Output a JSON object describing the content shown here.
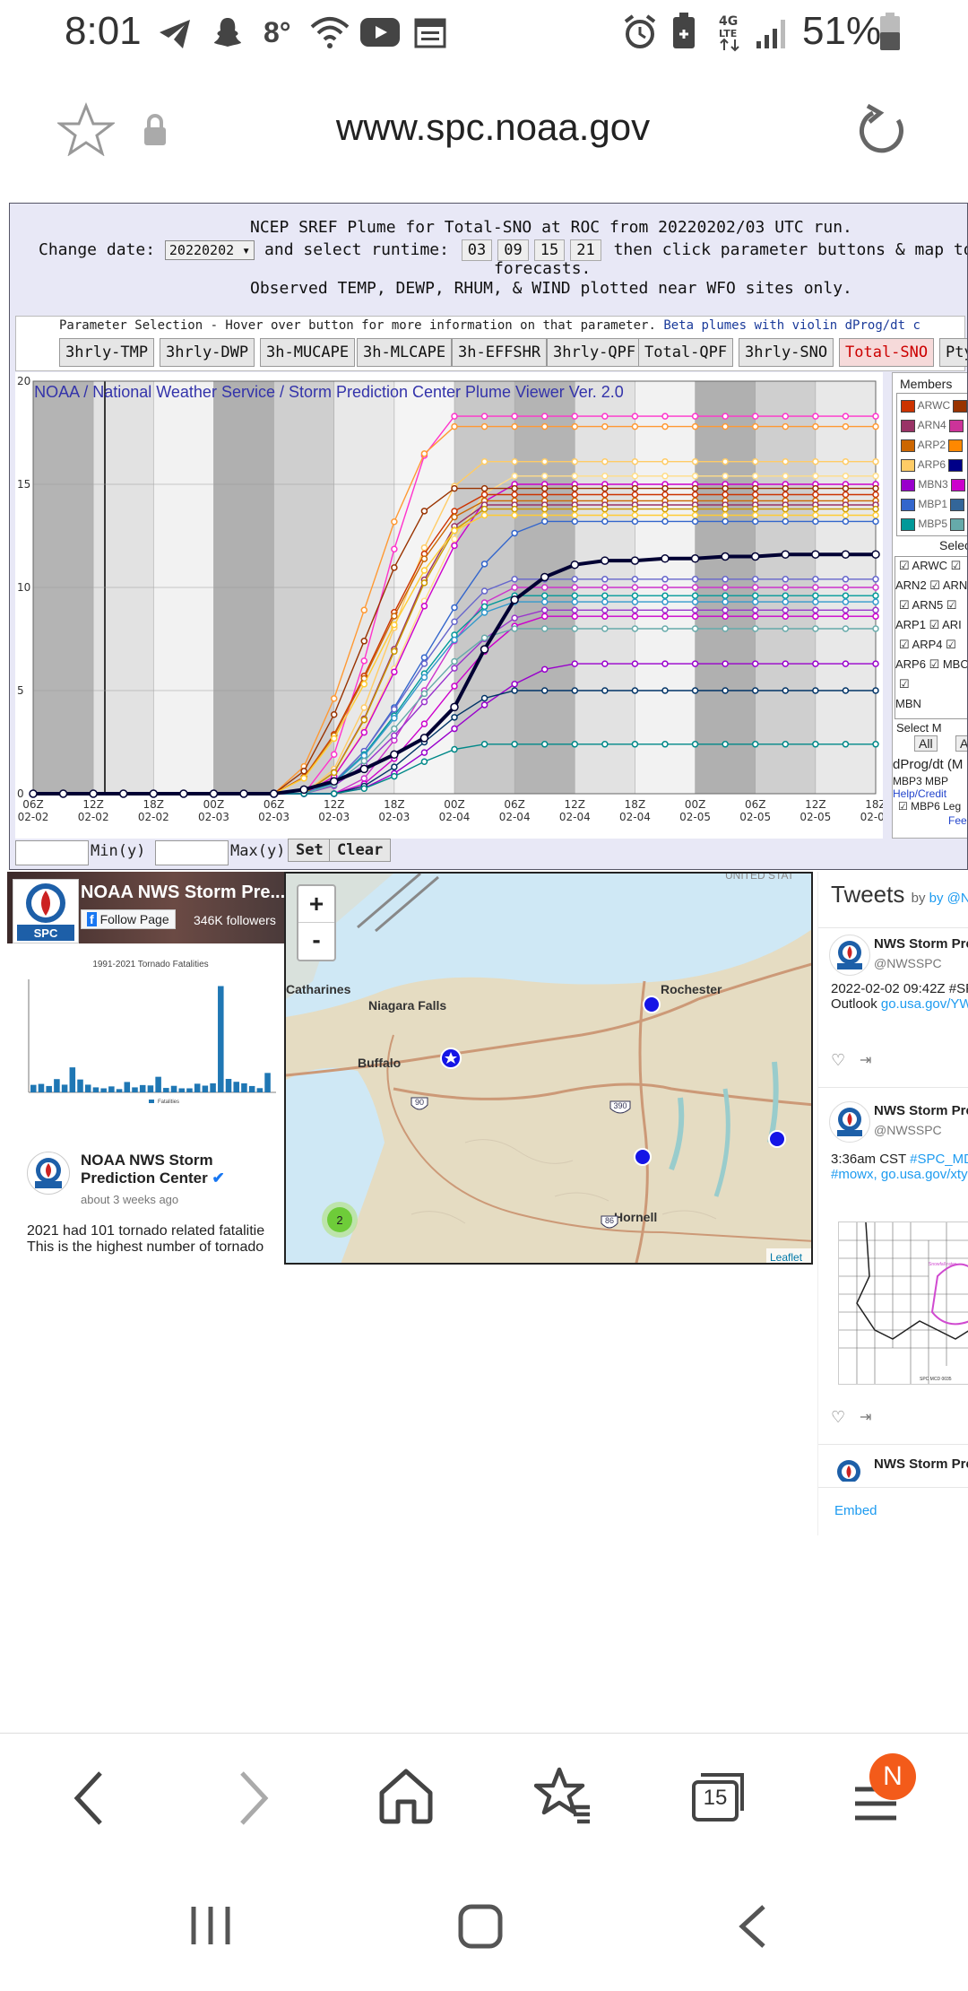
{
  "status": {
    "time": "8:01",
    "temp": "8°",
    "battery": "51%"
  },
  "browser": {
    "url": "www.spc.noaa.gov",
    "tab_count": "15",
    "profile_initial": "N"
  },
  "plume": {
    "title_line": "NCEP SREF Plume for Total-SNO at ROC from 20220202/03 UTC run.",
    "change_date_label": "Change date:",
    "date_value": "20220202",
    "select_runtime_label": "and select runtime:",
    "runtimes": [
      "03",
      "09",
      "15",
      "21"
    ],
    "then_label": "then click parameter buttons & map to",
    "forecasts_label": "forecasts.",
    "observed_note": "Observed TEMP, DEWP, RHUM, & WIND plotted near WFO sites only.",
    "param_selection_text": "Parameter Selection - Hover over button for more information on that parameter.",
    "beta_text": "Beta plumes with violin dProg/dt c",
    "params": [
      "3hrly-TMP",
      "3hrly-DWP",
      "3h-MUCAPE",
      "3h-MLCAPE",
      "3h-EFFSHR",
      "3hrly-QPF",
      "Total-QPF",
      "3hrly-SNO",
      "Total-SNO",
      "Ptyp"
    ],
    "active_param": "Total-SNO",
    "min_label": "Min(y)",
    "max_label": "Max(y)",
    "set_label": "Set",
    "clear_label": "Clear"
  },
  "members_panel": {
    "header": "Members",
    "names": [
      "ARWC",
      "ARN4",
      "ARP2",
      "ARP6",
      "MBN3",
      "MBP1",
      "MBP5"
    ],
    "colors": [
      "#cc3300",
      "#993366",
      "#cc6600",
      "#ffcc66",
      "#9900cc",
      "#3366cc",
      "#009999"
    ],
    "colors2": [
      "#993300",
      "#cc3399",
      "#ff8800",
      "#000088",
      "#cc00cc",
      "#336699",
      "#66aaaa"
    ],
    "select_label": "Select",
    "checks": [
      "ARWC",
      "ARN2",
      "ARN5",
      "ARP1",
      "ARP4",
      "ARP6",
      "MBN"
    ],
    "checks_partial": [
      "ARN",
      "ARI",
      "MBC"
    ],
    "select_all": "Select M",
    "all_btn": "All",
    "all_btn2": "A",
    "dprog": "dProg/dt (M",
    "mbp3": "MBP3",
    "mbp": "MBP",
    "help": "Help/Credit",
    "mbp6": "MBP6",
    "leg": "Leg",
    "fee": "Fee"
  },
  "chart_data": {
    "type": "line",
    "title": "NOAA / National Weather Service / Storm Prediction Center Plume Viewer Ver. 2.0",
    "ylim": [
      0,
      20
    ],
    "yticks": [
      "0",
      "5",
      "10",
      "15",
      "20"
    ],
    "x_labels": [
      [
        "06Z",
        "02-02"
      ],
      [
        "12Z",
        "02-02"
      ],
      [
        "18Z",
        "02-02"
      ],
      [
        "00Z",
        "02-03"
      ],
      [
        "06Z",
        "02-03"
      ],
      [
        "12Z",
        "02-03"
      ],
      [
        "18Z",
        "02-03"
      ],
      [
        "00Z",
        "02-04"
      ],
      [
        "06Z",
        "02-04"
      ],
      [
        "12Z",
        "02-04"
      ],
      [
        "18Z",
        "02-04"
      ],
      [
        "00Z",
        "02-05"
      ],
      [
        "06Z",
        "02-05"
      ],
      [
        "12Z",
        "02-05"
      ],
      [
        "18Z",
        "02-05"
      ]
    ],
    "steps": 29,
    "mean_series": {
      "name": "Mean",
      "color": "#000033",
      "values": [
        0,
        0,
        0,
        0,
        0,
        0,
        0,
        0,
        0,
        0.2,
        0.6,
        1.2,
        1.9,
        2.7,
        4.2,
        7.0,
        9.4,
        10.5,
        11.1,
        11.3,
        11.3,
        11.4,
        11.4,
        11.5,
        11.5,
        11.6,
        11.6,
        11.6,
        11.6
      ]
    },
    "series": [
      {
        "color": "#ff33cc",
        "final": 18.3,
        "start": 9,
        "rise": 5
      },
      {
        "color": "#ff9933",
        "final": 17.8,
        "start": 8,
        "rise": 6
      },
      {
        "color": "#ffcc66",
        "final": 16.1,
        "start": 9,
        "rise": 6
      },
      {
        "color": "#ffdd88",
        "final": 15.4,
        "start": 9,
        "rise": 7
      },
      {
        "color": "#cc00cc",
        "final": 15.0,
        "start": 9,
        "rise": 7
      },
      {
        "color": "#993300",
        "final": 14.8,
        "start": 8,
        "rise": 6
      },
      {
        "color": "#cc3300",
        "final": 14.5,
        "start": 8,
        "rise": 7
      },
      {
        "color": "#cc6600",
        "final": 14.2,
        "start": 8,
        "rise": 7
      },
      {
        "color": "#993366",
        "final": 14.0,
        "start": 9,
        "rise": 6
      },
      {
        "color": "#cc9900",
        "final": 13.8,
        "start": 9,
        "rise": 6
      },
      {
        "color": "#ffcc33",
        "final": 13.5,
        "start": 8,
        "rise": 7
      },
      {
        "color": "#3366cc",
        "final": 13.2,
        "start": 9,
        "rise": 8
      },
      {
        "color": "#6666cc",
        "final": 10.4,
        "start": 9,
        "rise": 7
      },
      {
        "color": "#cc33cc",
        "final": 10.0,
        "start": 10,
        "rise": 6
      },
      {
        "color": "#009999",
        "final": 9.6,
        "start": 9,
        "rise": 7
      },
      {
        "color": "#3399cc",
        "final": 9.3,
        "start": 9,
        "rise": 7
      },
      {
        "color": "#9933cc",
        "final": 8.9,
        "start": 9,
        "rise": 8
      },
      {
        "color": "#cc00cc",
        "final": 8.6,
        "start": 10,
        "rise": 7
      },
      {
        "color": "#66aaaa",
        "final": 8.0,
        "start": 9,
        "rise": 7
      },
      {
        "color": "#9900cc",
        "final": 6.3,
        "start": 10,
        "rise": 8
      },
      {
        "color": "#003366",
        "final": 5.0,
        "start": 10,
        "rise": 6
      },
      {
        "color": "#008888",
        "final": 2.4,
        "start": 10,
        "rise": 5
      }
    ]
  },
  "facebook": {
    "page_name": "NOAA NWS Storm Pre...",
    "follow": "Follow Page",
    "followers": "346K followers",
    "chart_title": "1991-2021 Tornado Fatalities",
    "post_author_1": "NOAA NWS Storm",
    "post_author_2": "Prediction Center",
    "post_time": "about 3 weeks ago",
    "post_text_1": "2021 had 101 tornado related fatalitie",
    "post_text_2": "This is the highest number of tornado",
    "logo_text": "SPC",
    "legend": "Fatalities"
  },
  "map": {
    "zoom_in": "+",
    "zoom_out": "-",
    "places": [
      "Catharines",
      "Niagara Falls",
      "Buffalo",
      "Rochester",
      "Hornell"
    ],
    "cluster_count": "2",
    "attribution": "Leaflet",
    "region_label": "UNITED STAT",
    "shields": [
      "90",
      "390",
      "86"
    ]
  },
  "twitter": {
    "header": "Tweets",
    "by": "by @NWS",
    "author": "NWS Storm Pre",
    "handle": "@NWSSPC",
    "tweet1_line1": "2022-02-02 09:42Z #SP",
    "tweet1_line2_a": "Outlook",
    "tweet1_line2_b": "go.usa.gov/YW",
    "tweet2_line1_a": "3:36am CST",
    "tweet2_line1_b": "#SPC_MD",
    "tweet2_line2_a": "#mowx,",
    "tweet2_line2_b": "go.usa.gov/xty",
    "embed": "Embed",
    "md_caption": "SPC MCD 0035"
  }
}
